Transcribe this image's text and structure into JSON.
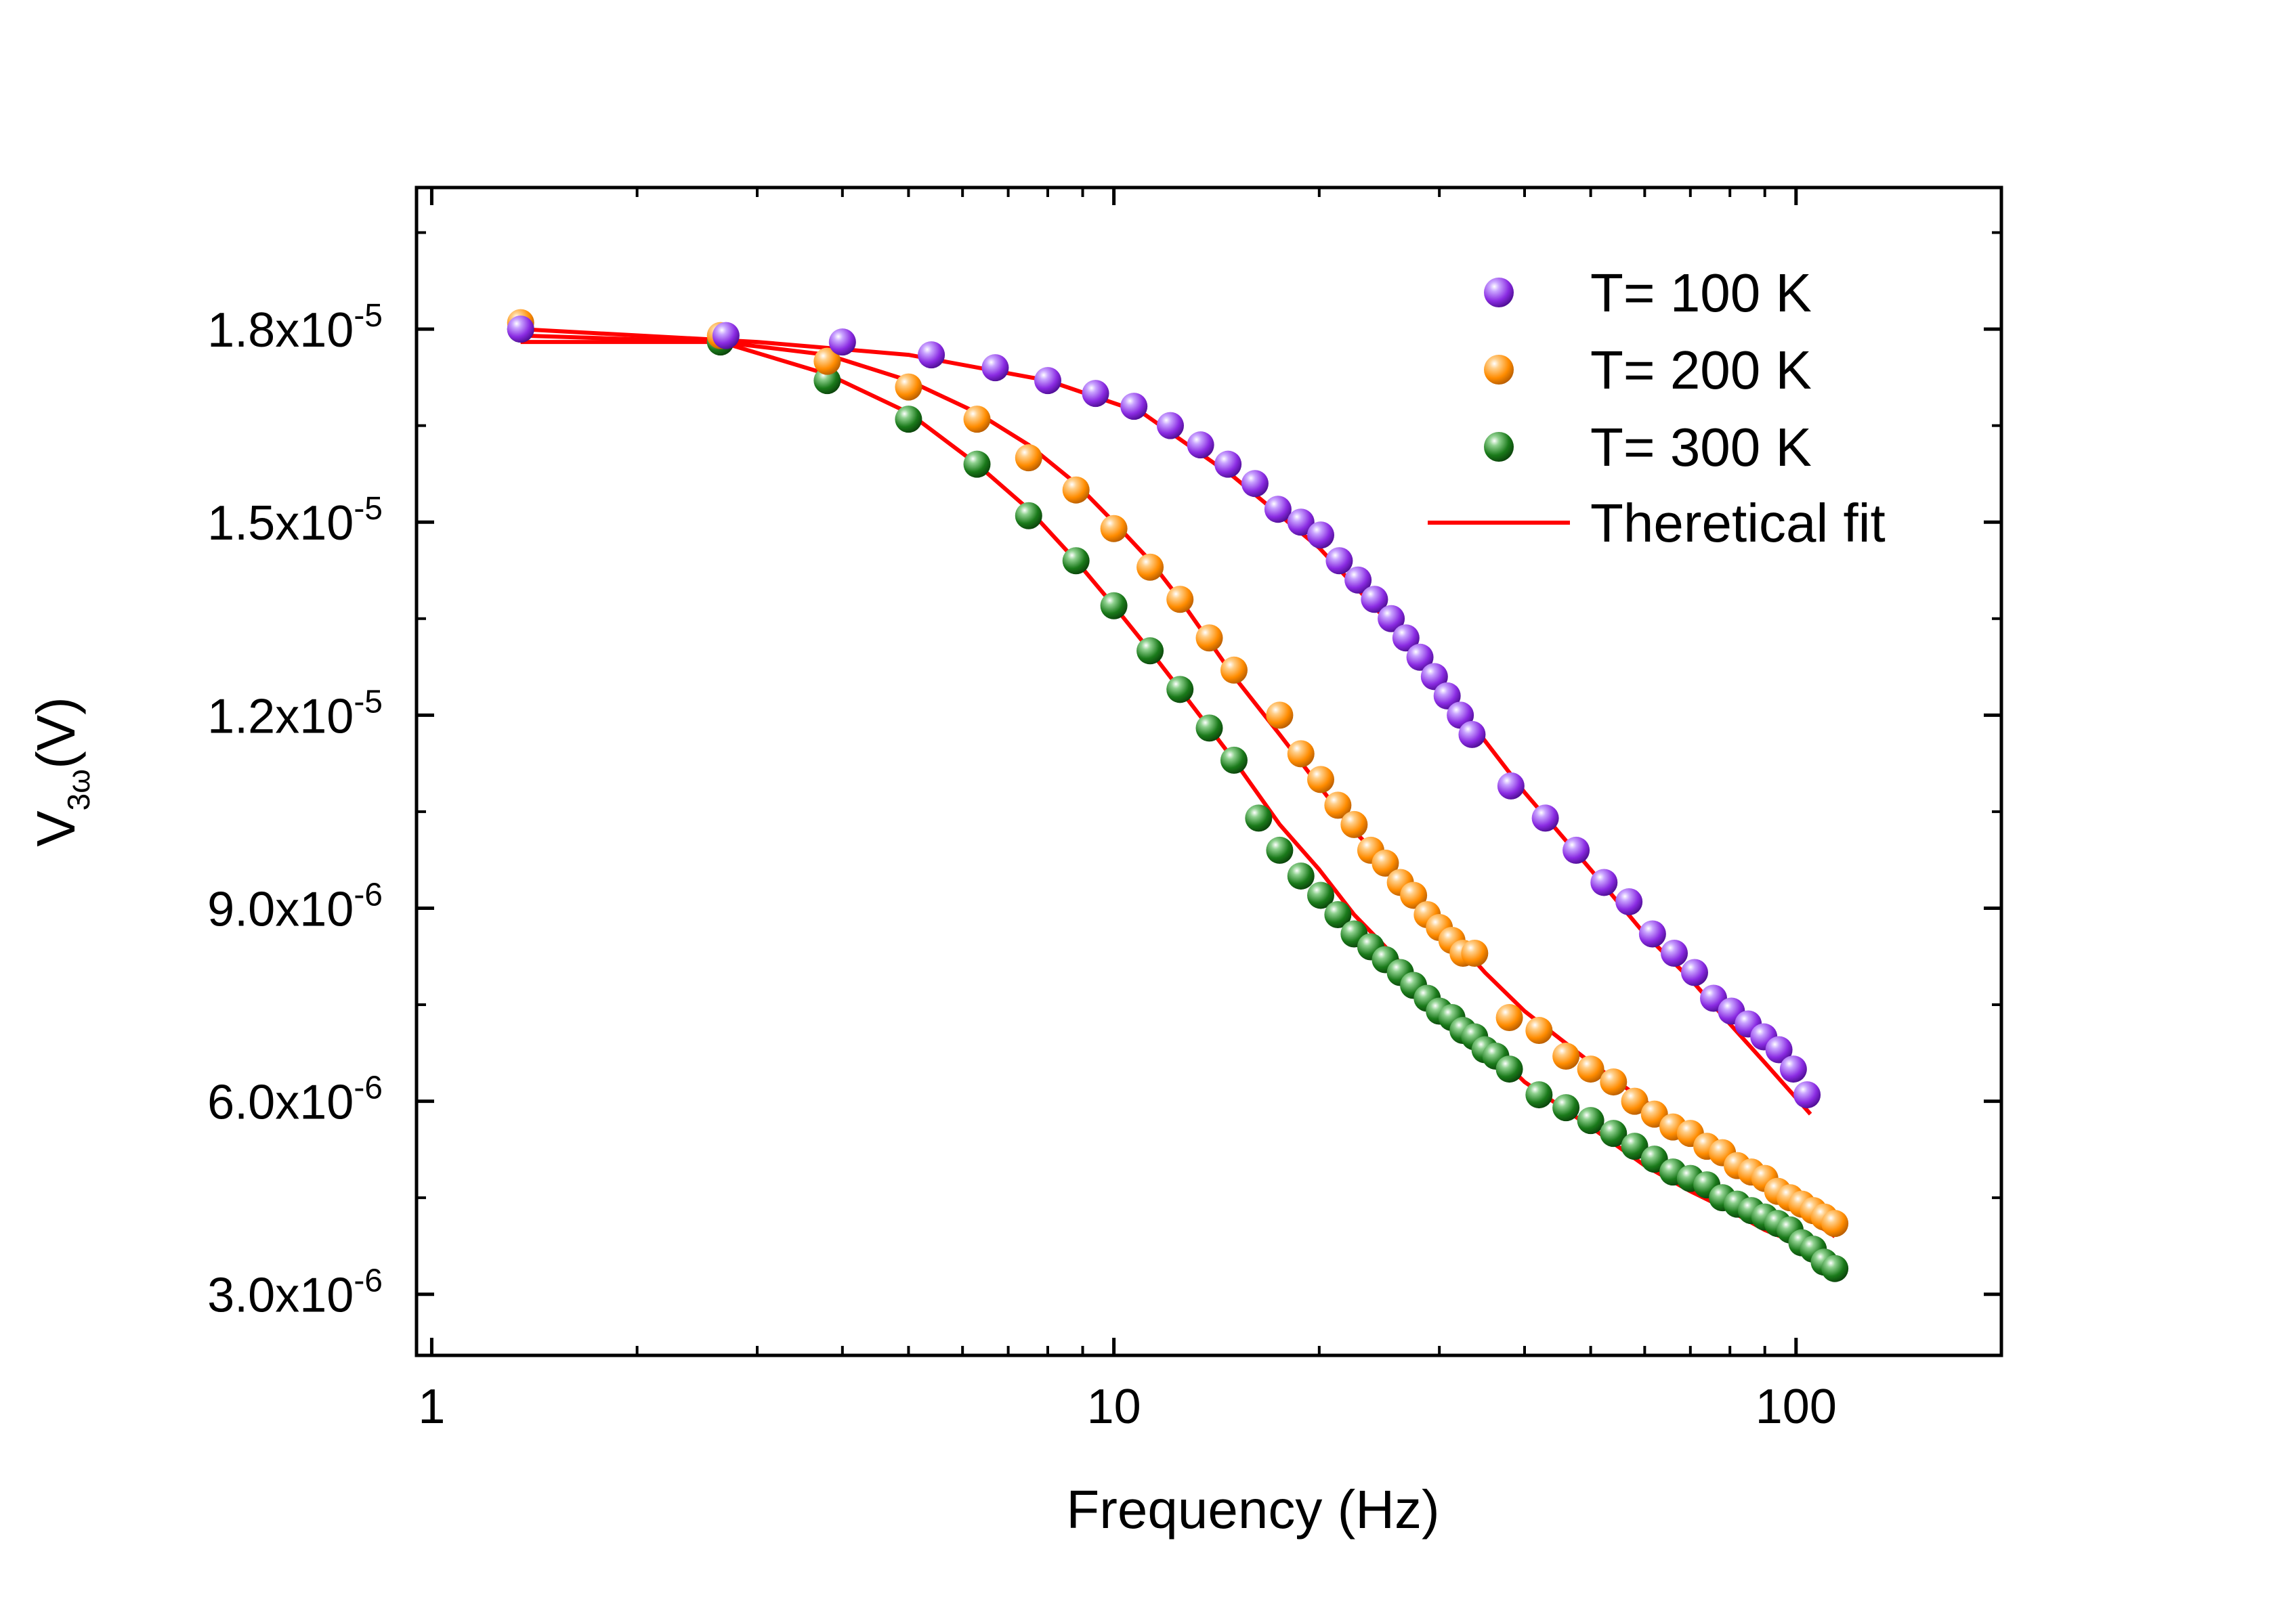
{
  "chart_data": {
    "type": "scatter",
    "title": "",
    "xlabel": "Frequency (Hz)",
    "ylabel": {
      "main": "V",
      "subscript": "3ω",
      "suffix": "(V)"
    },
    "xscale": "log",
    "xlim": [
      0.95,
      200
    ],
    "ylim": [
      2.05e-06,
      2.02e-05
    ],
    "x_ticks": [
      {
        "value": 1,
        "label": "1"
      },
      {
        "value": 10,
        "label": "10"
      },
      {
        "value": 100,
        "label": "100"
      }
    ],
    "y_ticks": [
      {
        "value": 3e-06,
        "mantissa": "3.0x10",
        "exponent": "-6"
      },
      {
        "value": 6e-06,
        "mantissa": "6.0x10",
        "exponent": "-6"
      },
      {
        "value": 9e-06,
        "mantissa": "9.0x10",
        "exponent": "-6"
      },
      {
        "value": 1.2e-05,
        "mantissa": "1.2x10",
        "exponent": "-5"
      },
      {
        "value": 1.5e-05,
        "mantissa": "1.5x10",
        "exponent": "-5"
      },
      {
        "value": 1.8e-05,
        "mantissa": "1.8x10",
        "exponent": "-5"
      }
    ],
    "legend_position": "top-right",
    "series": [
      {
        "name": "T= 100 K",
        "kind": "points",
        "color": "#8a2be2",
        "x": [
          1.35,
          2.7,
          4.0,
          5.4,
          6.7,
          8.0,
          9.4,
          10.7,
          12.1,
          13.4,
          14.7,
          16.1,
          17.4,
          18.8,
          20.1,
          21.4,
          22.8,
          24.1,
          25.5,
          26.8,
          28.1,
          29.5,
          30.8,
          32.2,
          33.5,
          38.2,
          42.9,
          47.6,
          52.3,
          56.9,
          61.6,
          66.3,
          71.0,
          75.7,
          80.4,
          85.1,
          89.7,
          94.4,
          99.1,
          103.8
        ],
        "y": [
          1.8e-05,
          1.79e-05,
          1.78e-05,
          1.76e-05,
          1.74e-05,
          1.72e-05,
          1.7e-05,
          1.68e-05,
          1.65e-05,
          1.62e-05,
          1.59e-05,
          1.56e-05,
          1.52e-05,
          1.5e-05,
          1.48e-05,
          1.44e-05,
          1.41e-05,
          1.38e-05,
          1.35e-05,
          1.32e-05,
          1.29e-05,
          1.26e-05,
          1.23e-05,
          1.2e-05,
          1.17e-05,
          1.09e-05,
          1.04e-05,
          9.9e-06,
          9.4e-06,
          9.1e-06,
          8.6e-06,
          8.3e-06,
          8e-06,
          7.6e-06,
          7.4e-06,
          7.2e-06,
          7e-06,
          6.8e-06,
          6.5e-06,
          6.1e-06
        ]
      },
      {
        "name": "T= 200 K",
        "kind": "points",
        "color": "#ff8c00",
        "x": [
          1.35,
          2.65,
          3.8,
          5.0,
          6.3,
          7.5,
          8.8,
          10.0,
          11.3,
          12.5,
          13.8,
          15.0,
          17.5,
          18.8,
          20.1,
          21.3,
          22.5,
          23.8,
          25.0,
          26.3,
          27.5,
          28.8,
          30.0,
          31.3,
          32.5,
          33.8,
          38.0,
          42.0,
          46.0,
          50.0,
          54.0,
          58.0,
          62.0,
          66.0,
          70.0,
          74.0,
          78.0,
          82.0,
          86.0,
          90.0,
          94.0,
          98.0,
          102.0,
          106.0,
          110.0,
          114.0
        ],
        "y": [
          1.81e-05,
          1.79e-05,
          1.75e-05,
          1.71e-05,
          1.66e-05,
          1.6e-05,
          1.55e-05,
          1.49e-05,
          1.43e-05,
          1.38e-05,
          1.32e-05,
          1.27e-05,
          1.2e-05,
          1.14e-05,
          1.1e-05,
          1.06e-05,
          1.03e-05,
          9.9e-06,
          9.7e-06,
          9.4e-06,
          9.2e-06,
          8.9e-06,
          8.7e-06,
          8.5e-06,
          8.3e-06,
          8.3e-06,
          7.3e-06,
          7.1e-06,
          6.7e-06,
          6.5e-06,
          6.3e-06,
          6e-06,
          5.8e-06,
          5.6e-06,
          5.5e-06,
          5.3e-06,
          5.2e-06,
          5e-06,
          4.9e-06,
          4.8e-06,
          4.6e-06,
          4.5e-06,
          4.4e-06,
          4.3e-06,
          4.2e-06,
          4.1e-06
        ]
      },
      {
        "name": "T= 300 K",
        "kind": "points",
        "color": "#1a7a1a",
        "x": [
          1.35,
          2.65,
          3.8,
          5.0,
          6.3,
          7.5,
          8.8,
          10.0,
          11.3,
          12.5,
          13.8,
          15.0,
          16.3,
          17.5,
          18.8,
          20.1,
          21.3,
          22.5,
          23.8,
          25.0,
          26.3,
          27.5,
          28.8,
          30.0,
          31.3,
          32.5,
          33.8,
          35.0,
          36.3,
          38.0,
          42.0,
          46.0,
          50.0,
          54.0,
          58.0,
          62.0,
          66.0,
          70.0,
          74.0,
          78.0,
          82.0,
          86.0,
          90.0,
          94.0,
          98.0,
          102.0,
          106.0,
          110.0,
          114.0
        ],
        "y": [
          1.8e-05,
          1.78e-05,
          1.72e-05,
          1.66e-05,
          1.59e-05,
          1.51e-05,
          1.44e-05,
          1.37e-05,
          1.3e-05,
          1.24e-05,
          1.18e-05,
          1.13e-05,
          1.04e-05,
          9.9e-06,
          9.5e-06,
          9.2e-06,
          8.9e-06,
          8.6e-06,
          8.4e-06,
          8.2e-06,
          8e-06,
          7.8e-06,
          7.6e-06,
          7.4e-06,
          7.3e-06,
          7.1e-06,
          7e-06,
          6.8e-06,
          6.7e-06,
          6.5e-06,
          6.1e-06,
          5.9e-06,
          5.7e-06,
          5.5e-06,
          5.3e-06,
          5.1e-06,
          4.9e-06,
          4.8e-06,
          4.7e-06,
          4.5e-06,
          4.4e-06,
          4.3e-06,
          4.2e-06,
          4.1e-06,
          4e-06,
          3.8e-06,
          3.7e-06,
          3.5e-06,
          3.4e-06
        ]
      },
      {
        "name": "Theretical fit",
        "kind": "fit",
        "color": "#ff0000",
        "curves": [
          {
            "for": "T= 100 K",
            "x": [
              1.35,
              3.0,
              5.0,
              8.0,
              11.0,
              15.0,
              20.0,
              25.0,
              30.0,
              35.0,
              40.0,
              50.0,
              60.0,
              70.0,
              80.0,
              90.0,
              105.0
            ],
            "y": [
              1.8e-05,
              1.78e-05,
              1.76e-05,
              1.72e-05,
              1.67e-05,
              1.57e-05,
              1.46e-05,
              1.35e-05,
              1.25e-05,
              1.16e-05,
              1.08e-05,
              9.6e-06,
              8.6e-06,
              7.9e-06,
              7.2e-06,
              6.6e-06,
              5.8e-06
            ]
          },
          {
            "for": "T= 200 K",
            "x": [
              1.35,
              2.65,
              3.8,
              5.0,
              6.3,
              7.5,
              8.8,
              10.0,
              11.3,
              12.5,
              15.0,
              17.5,
              20.0,
              22.5,
              25.0,
              30.0,
              35.0,
              40.0,
              50.0,
              60.0,
              70.0,
              80.0,
              90.0,
              100.0,
              114.0
            ],
            "y": [
              1.79e-05,
              1.78e-05,
              1.76e-05,
              1.72e-05,
              1.67e-05,
              1.62e-05,
              1.56e-05,
              1.5e-05,
              1.44e-05,
              1.38e-05,
              1.26e-05,
              1.17e-05,
              1.09e-05,
              1.02e-05,
              9.7e-06,
              8.8e-06,
              8e-06,
              7.4e-06,
              6.6e-06,
              6e-06,
              5.5e-06,
              5.1e-06,
              4.7e-06,
              4.3e-06,
              3.9e-06
            ]
          },
          {
            "for": "T= 300 K",
            "x": [
              1.35,
              2.65,
              3.8,
              5.0,
              6.3,
              7.5,
              8.8,
              10.0,
              11.3,
              12.5,
              15.0,
              17.5,
              20.0,
              22.5,
              25.0,
              30.0,
              35.0,
              40.0,
              50.0,
              60.0,
              70.0,
              80.0,
              90.0,
              100.0,
              114.0
            ],
            "y": [
              1.78e-05,
              1.78e-05,
              1.73e-05,
              1.67e-05,
              1.59e-05,
              1.52e-05,
              1.44e-05,
              1.37e-05,
              1.3e-05,
              1.24e-05,
              1.13e-05,
              1.03e-05,
              9.6e-06,
              8.9e-06,
              8.4e-06,
              7.5e-06,
              6.9e-06,
              6.3e-06,
              5.6e-06,
              5e-06,
              4.6e-06,
              4.3e-06,
              4e-06,
              3.8e-06,
              3.5e-06
            ]
          }
        ]
      }
    ]
  }
}
